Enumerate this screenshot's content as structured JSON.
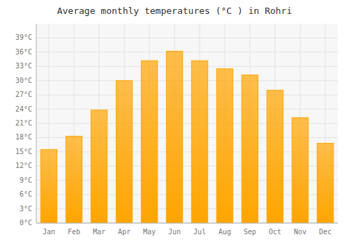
{
  "chart_data": {
    "type": "bar",
    "title": "Average monthly temperatures (°C ) in Rohri",
    "categories": [
      "Jan",
      "Feb",
      "Mar",
      "Apr",
      "May",
      "Jun",
      "Jul",
      "Aug",
      "Sep",
      "Oct",
      "Nov",
      "Dec"
    ],
    "values": [
      15.5,
      18.3,
      23.8,
      30.0,
      34.2,
      36.2,
      34.2,
      32.5,
      31.2,
      28.0,
      22.2,
      16.8
    ],
    "color": "#FFA500",
    "ylim": [
      0,
      42
    ],
    "yticks": [
      {
        "value": 0,
        "label": "0°C"
      },
      {
        "value": 3,
        "label": "3°C"
      },
      {
        "value": 6,
        "label": "6°C"
      },
      {
        "value": 9,
        "label": "9°C"
      },
      {
        "value": 12,
        "label": "12°C"
      },
      {
        "value": 15,
        "label": "15°C"
      },
      {
        "value": 18,
        "label": "18°C"
      },
      {
        "value": 21,
        "label": "21°C"
      },
      {
        "value": 24,
        "label": "24°C"
      },
      {
        "value": 27,
        "label": "27°C"
      },
      {
        "value": 30,
        "label": "30°C"
      },
      {
        "value": 33,
        "label": "33°C"
      },
      {
        "value": 36,
        "label": "36°C"
      },
      {
        "value": 39,
        "label": "39°C"
      }
    ],
    "grid": true
  }
}
